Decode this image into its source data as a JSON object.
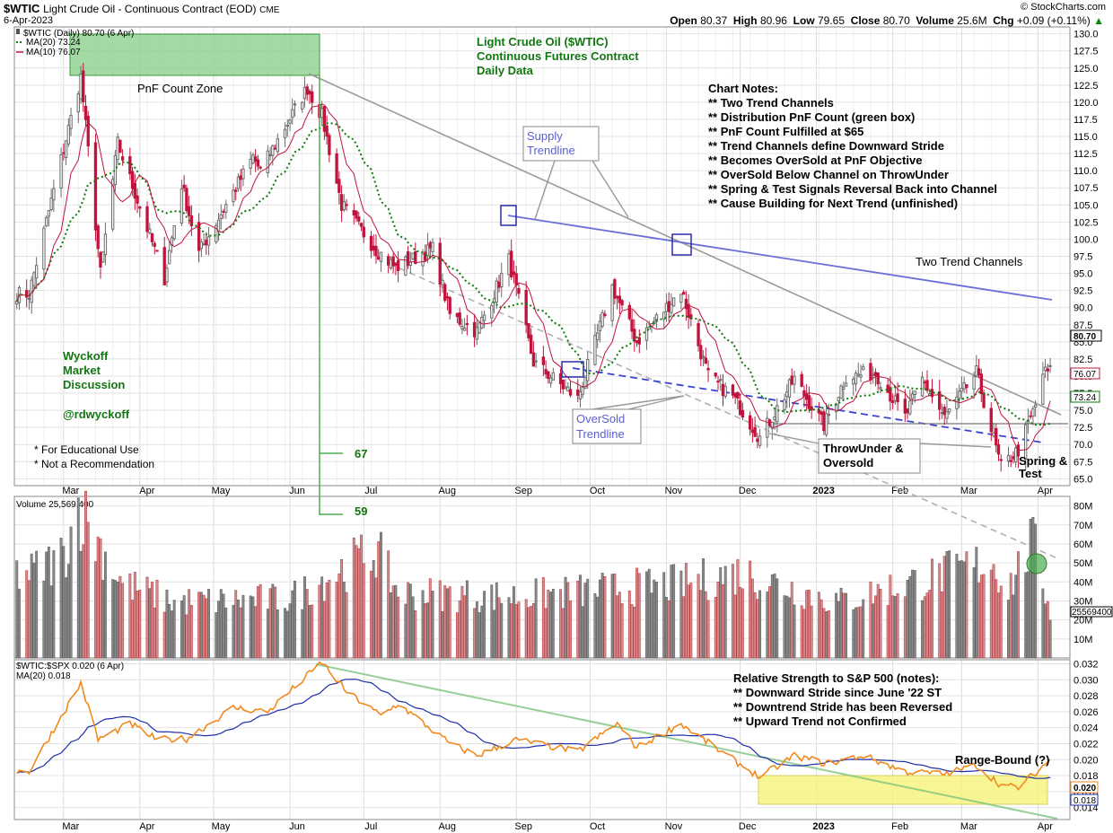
{
  "header": {
    "symbol": "$WTIC",
    "name": "Light Crude Oil - Continuous Contract (EOD)",
    "exchange": "CME",
    "date": "6-Apr-2023",
    "watermark": "© StockCharts.com",
    "open_label": "Open",
    "open": "80.37",
    "high_label": "High",
    "high": "80.96",
    "low_label": "Low",
    "low": "79.65",
    "close_label": "Close",
    "close": "80.70",
    "volume_label": "Volume",
    "volume": "25.6M",
    "chg_label": "Chg",
    "chg": "+0.09 (+0.11%)",
    "arrow": "▲"
  },
  "chart_data": [
    {
      "type": "candlestick",
      "panel": "price",
      "legend": [
        "$WTIC (Daily) 80.70 (6 Apr)",
        "MA(20) 73.24",
        "MA(10) 76.07"
      ],
      "ylim": [
        64,
        131
      ],
      "yticks": [
        "130.0",
        "127.5",
        "125.0",
        "122.5",
        "120.0",
        "117.5",
        "115.0",
        "112.5",
        "110.0",
        "107.5",
        "105.0",
        "102.5",
        "100.0",
        "97.5",
        "95.0",
        "92.5",
        "90.0",
        "87.5",
        "85.0",
        "82.5",
        "80.0",
        "77.5",
        "75.0",
        "72.5",
        "70.0",
        "67.5",
        "65.0"
      ],
      "xticks": [
        "Mar",
        "Apr",
        "May",
        "Jun",
        "Jul",
        "Aug",
        "Sep",
        "Oct",
        "Nov",
        "Dec",
        "2023",
        "Feb",
        "Mar",
        "Apr"
      ],
      "closing_price_anchors": [
        {
          "date": "2022-02-15",
          "close": 92
        },
        {
          "date": "2022-03-08",
          "close": 123.7
        },
        {
          "date": "2022-03-16",
          "close": 95
        },
        {
          "date": "2022-03-23",
          "close": 114
        },
        {
          "date": "2022-04-11",
          "close": 94.3
        },
        {
          "date": "2022-04-18",
          "close": 108
        },
        {
          "date": "2022-04-25",
          "close": 98
        },
        {
          "date": "2022-05-17",
          "close": 112
        },
        {
          "date": "2022-05-20",
          "close": 110
        },
        {
          "date": "2022-06-08",
          "close": 122.1
        },
        {
          "date": "2022-06-14",
          "close": 118
        },
        {
          "date": "2022-06-22",
          "close": 105
        },
        {
          "date": "2022-07-06",
          "close": 98.5
        },
        {
          "date": "2022-07-14",
          "close": 95.8
        },
        {
          "date": "2022-07-29",
          "close": 98.6
        },
        {
          "date": "2022-08-05",
          "close": 89
        },
        {
          "date": "2022-08-16",
          "close": 86.5
        },
        {
          "date": "2022-08-29",
          "close": 97
        },
        {
          "date": "2022-09-08",
          "close": 82
        },
        {
          "date": "2022-09-26",
          "close": 76.7
        },
        {
          "date": "2022-10-10",
          "close": 93
        },
        {
          "date": "2022-10-20",
          "close": 85
        },
        {
          "date": "2022-11-07",
          "close": 92.6
        },
        {
          "date": "2022-11-18",
          "close": 80
        },
        {
          "date": "2022-11-28",
          "close": 77
        },
        {
          "date": "2022-12-09",
          "close": 71
        },
        {
          "date": "2022-12-23",
          "close": 79.6
        },
        {
          "date": "2023-01-04",
          "close": 72.8
        },
        {
          "date": "2023-01-13",
          "close": 79.9
        },
        {
          "date": "2023-01-25",
          "close": 80.5
        },
        {
          "date": "2023-02-06",
          "close": 74
        },
        {
          "date": "2023-02-13",
          "close": 79.5
        },
        {
          "date": "2023-02-22",
          "close": 73.9
        },
        {
          "date": "2023-03-07",
          "close": 80.5
        },
        {
          "date": "2023-03-17",
          "close": 66.7
        },
        {
          "date": "2023-03-24",
          "close": 69.2
        },
        {
          "date": "2023-03-31",
          "close": 75.7
        },
        {
          "date": "2023-04-03",
          "close": 80.4
        },
        {
          "date": "2023-04-06",
          "close": 80.7
        }
      ],
      "price_labels": {
        "last": "80.70",
        "ma10": "76.07",
        "ma20": "73.24"
      }
    },
    {
      "type": "bar",
      "panel": "volume",
      "legend": "Volume 25,569,400",
      "ylim": [
        0,
        85
      ],
      "unit": "M",
      "yticks": [
        "80M",
        "70M",
        "60M",
        "50M",
        "40M",
        "30M",
        "20M",
        "10M"
      ],
      "last_label": "25569400",
      "volume_anchors_millions": [
        {
          "date": "2022-02-15",
          "v": 45
        },
        {
          "date": "2022-03-01",
          "v": 55
        },
        {
          "date": "2022-03-07",
          "v": 82
        },
        {
          "date": "2022-03-15",
          "v": 62
        },
        {
          "date": "2022-03-25",
          "v": 40
        },
        {
          "date": "2022-04-15",
          "v": 30
        },
        {
          "date": "2022-06-01",
          "v": 32
        },
        {
          "date": "2022-07-06",
          "v": 58
        },
        {
          "date": "2022-07-15",
          "v": 35
        },
        {
          "date": "2022-09-01",
          "v": 33
        },
        {
          "date": "2022-11-07",
          "v": 40
        },
        {
          "date": "2022-12-01",
          "v": 46
        },
        {
          "date": "2023-01-10",
          "v": 30
        },
        {
          "date": "2023-03-13",
          "v": 52
        },
        {
          "date": "2023-03-20",
          "v": 38
        },
        {
          "date": "2023-03-30",
          "v": 62
        },
        {
          "date": "2023-04-06",
          "v": 25.6
        }
      ]
    },
    {
      "type": "line",
      "panel": "relative_strength",
      "legend": [
        "$WTIC:$SPX 0.020 (6 Apr)",
        "MA(20) 0.018"
      ],
      "ylim": [
        0.0125,
        0.0325
      ],
      "yticks": [
        "0.032",
        "0.030",
        "0.028",
        "0.026",
        "0.024",
        "0.022",
        "0.020",
        "0.018",
        "0.016",
        "0.014"
      ],
      "ratio_anchors": [
        {
          "date": "2022-02-15",
          "r": 0.0185
        },
        {
          "date": "2022-03-08",
          "r": 0.0296
        },
        {
          "date": "2022-03-15",
          "r": 0.0225
        },
        {
          "date": "2022-03-28",
          "r": 0.0245
        },
        {
          "date": "2022-04-08",
          "r": 0.0225
        },
        {
          "date": "2022-04-20",
          "r": 0.0226
        },
        {
          "date": "2022-05-09",
          "r": 0.0265
        },
        {
          "date": "2022-05-23",
          "r": 0.026
        },
        {
          "date": "2022-06-08",
          "r": 0.0305
        },
        {
          "date": "2022-06-14",
          "r": 0.0322
        },
        {
          "date": "2022-06-24",
          "r": 0.0285
        },
        {
          "date": "2022-07-08",
          "r": 0.0255
        },
        {
          "date": "2022-07-15",
          "r": 0.027
        },
        {
          "date": "2022-08-05",
          "r": 0.022
        },
        {
          "date": "2022-08-16",
          "r": 0.0205
        },
        {
          "date": "2022-09-01",
          "r": 0.0225
        },
        {
          "date": "2022-09-26",
          "r": 0.021
        },
        {
          "date": "2022-10-12",
          "r": 0.0245
        },
        {
          "date": "2022-10-20",
          "r": 0.0215
        },
        {
          "date": "2022-11-07",
          "r": 0.0245
        },
        {
          "date": "2022-11-23",
          "r": 0.021
        },
        {
          "date": "2022-12-09",
          "r": 0.0178
        },
        {
          "date": "2022-12-23",
          "r": 0.0205
        },
        {
          "date": "2023-01-05",
          "r": 0.0195
        },
        {
          "date": "2023-01-20",
          "r": 0.0205
        },
        {
          "date": "2023-02-06",
          "r": 0.0185
        },
        {
          "date": "2023-02-22",
          "r": 0.0182
        },
        {
          "date": "2023-03-07",
          "r": 0.0193
        },
        {
          "date": "2023-03-17",
          "r": 0.0168
        },
        {
          "date": "2023-03-24",
          "r": 0.0165
        },
        {
          "date": "2023-04-06",
          "r": 0.02
        }
      ],
      "value_labels": {
        "rs": "0.020",
        "ma": "0.018"
      }
    }
  ],
  "annotations": {
    "pnf_zone": "PnF Count Zone",
    "title_lines": [
      "Light Crude Oil ($WTIC)",
      "Continuous Futures Contract",
      "Daily Data"
    ],
    "notes_title": "Chart Notes:",
    "notes": [
      "** Two Trend Channels",
      "** Distribution PnF Count (green box)",
      "** PnF Count Fulfilled at $65",
      "** Trend Channels define Downward Stride",
      "** Becomes OverSold at PnF Objective",
      "** OverSold Below Channel on ThrowUnder",
      "** Spring & Test Signals Reversal Back into Channel",
      "** Cause Building for Next Trend (unfinished)"
    ],
    "supply": [
      "Supply",
      "Trendline"
    ],
    "oversold": [
      "OverSold",
      "Trendline"
    ],
    "two_channels": "Two Trend Channels",
    "wyckoff": [
      "Wyckoff",
      "Market",
      "Discussion"
    ],
    "handle": "@rdwyckoff",
    "disclaimers": [
      "* For Educational Use",
      "* Not a Recommendation"
    ],
    "count_67": "67",
    "count_59": "59",
    "throwunder": [
      "ThrowUnder &",
      "Oversold"
    ],
    "spring": [
      "Spring &",
      "Test"
    ],
    "rs_title": "Relative Strength to S&P 500 (notes):",
    "rs_notes": [
      "** Downward Stride since June '22 ST",
      "** Downtrend Stride has been Reversed",
      "** Upward Trend not Confirmed"
    ],
    "range_bound": "Range-Bound (?)"
  },
  "colors": {
    "up": "#6b6b6b",
    "down": "#c0143c",
    "ma20": "#0e7a0e",
    "ma10": "#c0143c",
    "rs": "#f08a1e",
    "rs_ma": "#1f2fa8",
    "trend_blue": "#6a6fd8",
    "trend_gray": "#9a9a9a",
    "green_text": "#117711",
    "green_box": "#8ccf8c",
    "yellow_box": "#f6f27a",
    "vol_up": "#8a8a8a",
    "vol_down": "#d98a90"
  }
}
